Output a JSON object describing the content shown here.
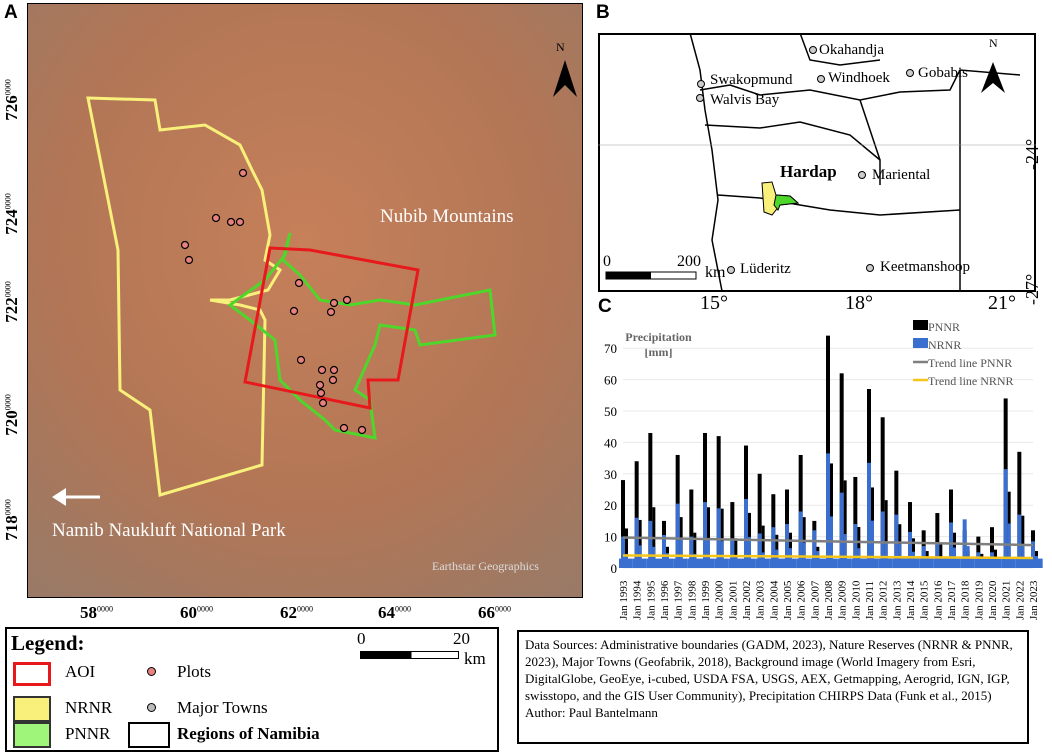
{
  "panels": {
    "a": "A",
    "b": "B",
    "c": "C"
  },
  "map_a": {
    "labels": {
      "mountains": "Nubib Mountains",
      "park": "Namib Naukluft National Park",
      "attribution": "Earthstar Geographics",
      "north": "N"
    },
    "y_ticks": [
      {
        "main": "726",
        "sup": "0000"
      },
      {
        "main": "724",
        "sup": "0000"
      },
      {
        "main": "722",
        "sup": "0000"
      },
      {
        "main": "720",
        "sup": "0000"
      },
      {
        "main": "718",
        "sup": "0000"
      }
    ],
    "x_ticks": [
      {
        "main": "58",
        "sup": "0000"
      },
      {
        "main": "60",
        "sup": "0000"
      },
      {
        "main": "62",
        "sup": "0000"
      },
      {
        "main": "64",
        "sup": "0000"
      },
      {
        "main": "66",
        "sup": "0000"
      }
    ],
    "colors": {
      "aoi": "#e8191c",
      "nrnr": "#f8f07a",
      "pnnr": "#4fd62a",
      "plots": "#e7817d"
    }
  },
  "map_b": {
    "region": "Hardap",
    "north": "N",
    "towns": [
      "Okahandja",
      "Swakopmund",
      "Windhoek",
      "Gobabis",
      "Walvis Bay",
      "Mariental",
      "Lüderitz",
      "Keetmanshoop"
    ],
    "scale": {
      "start": "0",
      "end": "200",
      "unit": "km"
    },
    "x_ticks": [
      "15°",
      "18°",
      "21°"
    ],
    "y_ticks": [
      "-24°",
      "-27°"
    ]
  },
  "legend": {
    "title": "Legend:",
    "items": [
      "AOI",
      "Plots",
      "NRNR",
      "Major Towns",
      "PNNR",
      "Regions of Namibia"
    ],
    "scale": {
      "start": "0",
      "end": "20",
      "unit": "km"
    }
  },
  "sources": {
    "text": "Data Sources: Administrative boundaries (GADM, 2023), Nature Reserves (NRNR & PNNR, 2023), Major Towns (Geofabrik, 2018), Background image (World Imagery from Esri, DigitalGlobe, GeoEye, i-cubed, USDA FSA, USGS, AEX, Getmapping, Aerogrid, IGN, IGP, swisstopo, and the GIS User Community), Precipitation CHIRPS Data (Funk et al., 2015)",
    "author": "Author: Paul Bantelmann"
  },
  "chart_data": {
    "type": "bar",
    "ylabel": "Precipitation [mm]",
    "ylim": [
      0,
      75
    ],
    "y_ticks": [
      "0",
      "10",
      "20",
      "30",
      "40",
      "50",
      "60",
      "70"
    ],
    "categories": [
      "Jan 1993",
      "Jan 1994",
      "Jan 1995",
      "Jan 1996",
      "Jan 1997",
      "Jan 1998",
      "Jan 1999",
      "Jan 2000",
      "Jan 2001",
      "Jan 2002",
      "Jan 2003",
      "Jan 2004",
      "Jan 2005",
      "Jan 2006",
      "Jan 2007",
      "Jan 2008",
      "Jan 2009",
      "Jan 2010",
      "Jan 2011",
      "Jan 2012",
      "Jan 2013",
      "Jan 2014",
      "Jan 2015",
      "Jan 2016",
      "Jan 2017",
      "Jan 2018",
      "Jan 2019",
      "Jan 2020",
      "Jan 2021",
      "Jan 2022",
      "Jan 2023"
    ],
    "series": [
      {
        "name": "PNNR",
        "color": "#000000",
        "values": [
          28,
          34,
          43,
          15,
          36,
          25,
          43,
          42,
          21,
          39,
          30,
          23.5,
          25,
          36,
          15,
          74,
          62,
          29,
          57,
          48,
          31,
          21,
          12,
          17.5,
          25,
          12,
          10,
          13,
          54,
          37,
          12
        ]
      },
      {
        "name": "NRNR",
        "color": "#3a6fd0",
        "values": [
          10,
          16,
          15,
          10.5,
          20.5,
          10,
          21,
          19,
          9,
          22,
          11,
          13,
          14,
          18,
          12,
          36.5,
          24,
          14,
          33.5,
          18,
          17,
          11.5,
          7,
          8,
          14.5,
          15.5,
          5,
          5,
          31.5,
          17,
          8.5
        ]
      }
    ],
    "trend_lines": [
      {
        "name": "Trend line PNNR",
        "color": "#7f7f7f",
        "start": 9.7,
        "end": 7.3
      },
      {
        "name": "Trend line NRNR",
        "color": "#f5c518",
        "start": 4,
        "end": 3.2
      }
    ],
    "grid": true,
    "legend_position": "top-right"
  }
}
